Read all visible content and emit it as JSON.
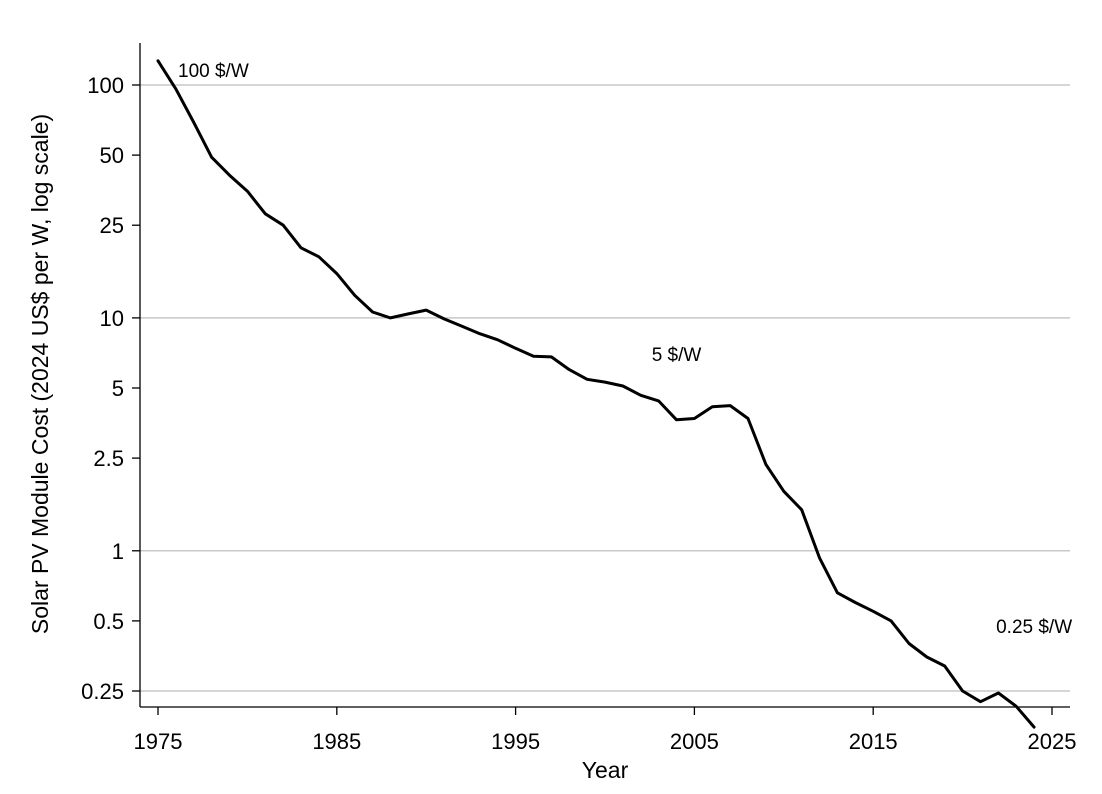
{
  "chart_data": {
    "type": "line",
    "title": "",
    "xlabel": "Year",
    "ylabel": "Solar PV Module Cost (2024 US$ per W, log scale)",
    "y_scale": "log",
    "xlim": [
      1975,
      2025
    ],
    "ylim": [
      0.22,
      165
    ],
    "grid": "horizontal",
    "x_ticks": [
      1975,
      1985,
      1995,
      2005,
      2015,
      2025
    ],
    "y_ticks": [
      {
        "value": 0.25,
        "label": "0.25"
      },
      {
        "value": 0.5,
        "label": "0.5"
      },
      {
        "value": 1,
        "label": "1"
      },
      {
        "value": 2.5,
        "label": "2.5"
      },
      {
        "value": 5,
        "label": "5"
      },
      {
        "value": 10,
        "label": "10"
      },
      {
        "value": 25,
        "label": "25"
      },
      {
        "value": 50,
        "label": "50"
      },
      {
        "value": 100,
        "label": "100"
      }
    ],
    "x": [
      1975,
      1976,
      1977,
      1978,
      1979,
      1980,
      1981,
      1982,
      1983,
      1984,
      1985,
      1986,
      1987,
      1988,
      1989,
      1990,
      1991,
      1992,
      1993,
      1994,
      1995,
      1996,
      1997,
      1998,
      1999,
      2000,
      2001,
      2002,
      2003,
      2004,
      2005,
      2006,
      2007,
      2008,
      2009,
      2010,
      2011,
      2012,
      2013,
      2014,
      2015,
      2016,
      2017,
      2018,
      2019,
      2020,
      2021,
      2022,
      2023,
      2024
    ],
    "series": [
      {
        "values": [
          127,
          96,
          69,
          49,
          41,
          35,
          28,
          25,
          20,
          18.3,
          15.5,
          12.5,
          10.6,
          10.0,
          10.4,
          10.8,
          9.9,
          9.2,
          8.55,
          8.05,
          7.4,
          6.85,
          6.8,
          6.0,
          5.45,
          5.3,
          5.1,
          4.65,
          4.4,
          3.65,
          3.7,
          4.15,
          4.2,
          3.7,
          2.35,
          1.8,
          1.5,
          0.93,
          0.66,
          0.6,
          0.55,
          0.5,
          0.4,
          0.35,
          0.32,
          0.25,
          0.225,
          0.245,
          0.215,
          0.175
        ]
      }
    ],
    "annotations": [
      {
        "text": "100 $/W",
        "x": 1975,
        "y": 127
      },
      {
        "text": "5 $/W",
        "x": 2004,
        "y": 5
      },
      {
        "text": "0.25 $/W",
        "x": 2024,
        "y": 0.25
      }
    ]
  }
}
